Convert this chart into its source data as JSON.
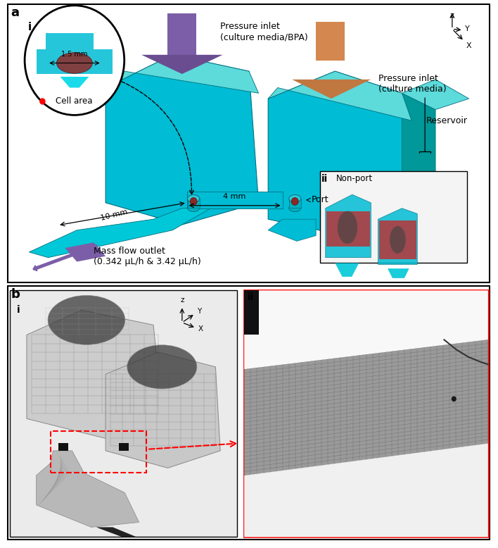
{
  "fig_width": 7.08,
  "fig_height": 7.78,
  "bg_color": "#ffffff",
  "teal": "#00bcd4",
  "teal_light": "#4dd9d9",
  "teal_dark": "#009090",
  "teal_side": "#00a0a8",
  "purple": "#7b5ea7",
  "orange": "#d4874e",
  "red": "#cc0000",
  "dark": "#333333",
  "panel_a_label": "a",
  "panel_b_label": "b",
  "label_i": "i",
  "label_ii": "ii",
  "text_pressure_inlet_1": "Pressure inlet\n(culture media/BPA)",
  "text_pressure_inlet_2": "Pressure inlet\n(culture media)",
  "text_reservoir": "Reservoir",
  "text_port": "Port",
  "text_mass_flow": "Mass flow outlet\n(0.342 μL/h & 3.42 μL/h)",
  "text_cell_area": "Cell area",
  "text_nonport": "Non-port",
  "text_15mm": "1.5 mm",
  "text_10mm": "10 mm",
  "text_4mm": "4 mm"
}
